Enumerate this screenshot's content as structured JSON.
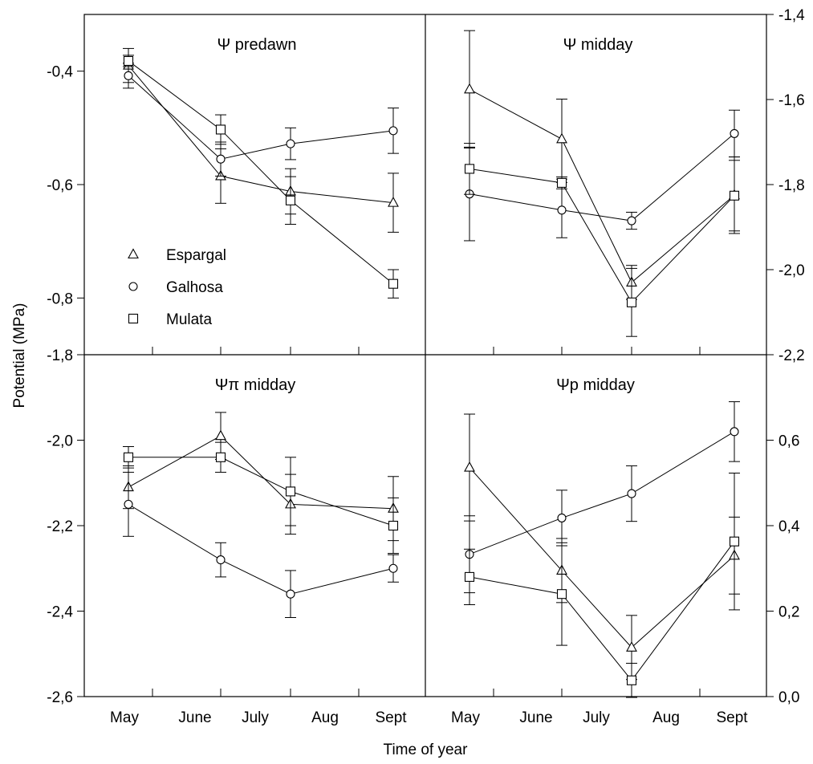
{
  "figure": {
    "ylabel": "Potential (MPa)",
    "xlabel": "Time of year"
  },
  "legend": {
    "position": "inside top-left panel, left",
    "items": [
      {
        "name": "Espargal",
        "marker": "triangle"
      },
      {
        "name": "Galhosa",
        "marker": "circle"
      },
      {
        "name": "Mulata",
        "marker": "square"
      }
    ]
  },
  "chart_data": [
    {
      "type": "line",
      "title": "Ψ predawn",
      "axis_side": "left",
      "x_categories": [
        "May",
        "June",
        "July",
        "Aug",
        "Sept"
      ],
      "x": [
        1,
        2,
        3,
        4
      ],
      "ylim": [
        -0.9,
        -0.3
      ],
      "yticks": [
        -0.4,
        -0.6,
        -0.8
      ],
      "series": [
        {
          "name": "Espargal",
          "marker": "triangle",
          "y": [
            -0.39,
            -0.585,
            -0.612,
            -0.632
          ],
          "err": [
            0.03,
            0.048,
            0.04,
            0.052
          ]
        },
        {
          "name": "Galhosa",
          "marker": "circle",
          "y": [
            -0.408,
            -0.555,
            -0.528,
            -0.505
          ],
          "err": [
            0.022,
            0.03,
            0.028,
            0.04
          ]
        },
        {
          "name": "Mulata",
          "marker": "square",
          "y": [
            -0.382,
            -0.503,
            -0.628,
            -0.775
          ],
          "err": [
            0.01,
            0.026,
            0.042,
            0.025
          ]
        }
      ]
    },
    {
      "type": "line",
      "title": "Ψ midday",
      "axis_side": "right",
      "x_categories": [
        "May",
        "June",
        "July",
        "Aug",
        "Sept"
      ],
      "x": [
        1,
        2,
        3,
        4
      ],
      "ylim": [
        -2.2,
        -1.4
      ],
      "yticks": [
        -1.4,
        -1.6,
        -1.8,
        -2.0,
        -2.2
      ],
      "series": [
        {
          "name": "Espargal",
          "marker": "triangle",
          "y": [
            -1.576,
            -1.693,
            -2.03,
            -1.825
          ],
          "err": [
            0.138,
            0.094,
            0.04,
            0.09
          ]
        },
        {
          "name": "Galhosa",
          "marker": "circle",
          "y": [
            -1.822,
            -1.86,
            -1.885,
            -1.68
          ],
          "err": [
            0.11,
            0.065,
            0.02,
            0.055
          ]
        },
        {
          "name": "Mulata",
          "marker": "square",
          "y": [
            -1.763,
            -1.796,
            -2.077,
            -1.826
          ],
          "err": [
            0.06,
            0.014,
            0.08,
            0.083
          ]
        }
      ]
    },
    {
      "type": "line",
      "title": "Ψπ midday",
      "axis_side": "left",
      "x_categories": [
        "May",
        "June",
        "July",
        "Aug",
        "Sept"
      ],
      "x": [
        1,
        2,
        3,
        4
      ],
      "ylim": [
        -2.6,
        -1.8
      ],
      "yticks": [
        -1.8,
        -2.0,
        -2.2,
        -2.4,
        -2.6
      ],
      "series": [
        {
          "name": "Espargal",
          "marker": "triangle",
          "y": [
            -2.11,
            -1.99,
            -2.15,
            -2.16
          ],
          "err": [
            0.05,
            0.055,
            0.07,
            0.075
          ]
        },
        {
          "name": "Galhosa",
          "marker": "circle",
          "y": [
            -2.15,
            -2.28,
            -2.36,
            -2.3
          ],
          "err": [
            0.075,
            0.04,
            0.055,
            0.032
          ]
        },
        {
          "name": "Mulata",
          "marker": "square",
          "y": [
            -2.04,
            -2.04,
            -2.12,
            -2.2
          ],
          "err": [
            0.025,
            0.035,
            0.08,
            0.065
          ]
        }
      ]
    },
    {
      "type": "line",
      "title": "Ψp midday",
      "axis_side": "right",
      "x_categories": [
        "May",
        "June",
        "July",
        "Aug",
        "Sept"
      ],
      "x": [
        1,
        2,
        3,
        4
      ],
      "ylim": [
        0.0,
        0.8
      ],
      "yticks": [
        0.0,
        0.2,
        0.4,
        0.6
      ],
      "series": [
        {
          "name": "Espargal",
          "marker": "triangle",
          "y": [
            0.536,
            0.295,
            0.115,
            0.33
          ],
          "err": [
            0.125,
            0.075,
            0.075,
            0.09
          ]
        },
        {
          "name": "Galhosa",
          "marker": "circle",
          "y": [
            0.333,
            0.418,
            0.475,
            0.62
          ],
          "err": [
            0.09,
            0.065,
            0.065,
            0.07
          ]
        },
        {
          "name": "Mulata",
          "marker": "square",
          "y": [
            0.28,
            0.24,
            0.038,
            0.363
          ],
          "err": [
            0.065,
            0.12,
            0.04,
            0.16
          ]
        }
      ]
    }
  ]
}
